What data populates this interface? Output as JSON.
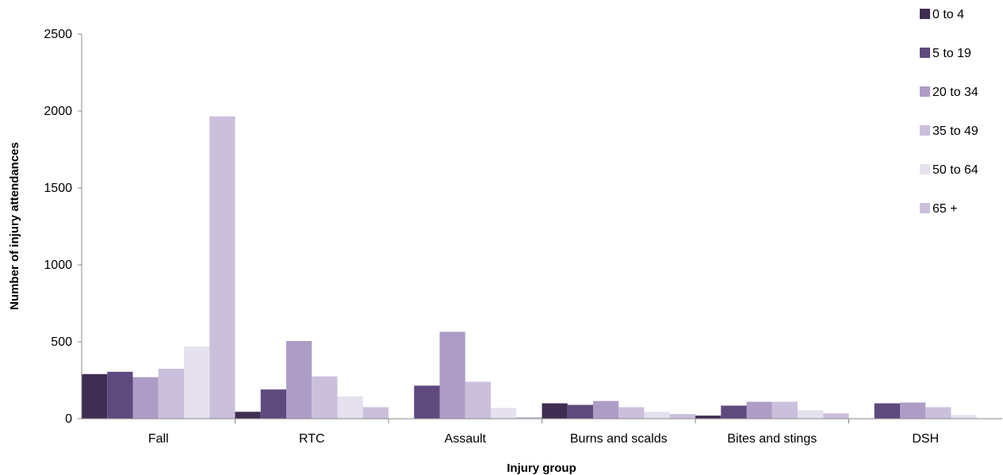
{
  "chart_data": {
    "type": "bar",
    "xlabel": "Injury group",
    "ylabel": "Number of injury attendances",
    "ylim": [
      0,
      2500
    ],
    "yticks": [
      "0",
      "500",
      "1000",
      "1500",
      "2000",
      "2500"
    ],
    "grid": false,
    "legend_position": "top-right",
    "categories": [
      "Fall",
      "RTC",
      "Assault",
      "Burns and scalds",
      "Bites and stings",
      "DSH"
    ],
    "series": [
      {
        "name": "0 to 4",
        "color": "#3f2e52",
        "values": [
          290,
          45,
          0,
          100,
          20,
          0
        ]
      },
      {
        "name": "5 to 19",
        "color": "#5f4a7e",
        "values": [
          305,
          190,
          215,
          90,
          85,
          100
        ]
      },
      {
        "name": "20 to 34",
        "color": "#ad9dc6",
        "values": [
          270,
          505,
          565,
          115,
          110,
          105
        ]
      },
      {
        "name": "35 to 49",
        "color": "#cbc0dc",
        "values": [
          325,
          275,
          240,
          75,
          110,
          75
        ]
      },
      {
        "name": "50 to 64",
        "color": "#e6e1ee",
        "values": [
          470,
          145,
          70,
          45,
          55,
          25
        ]
      },
      {
        "name": "65 +",
        "color": "#cbc0dc",
        "values": [
          1965,
          75,
          10,
          30,
          35,
          0
        ]
      }
    ]
  }
}
